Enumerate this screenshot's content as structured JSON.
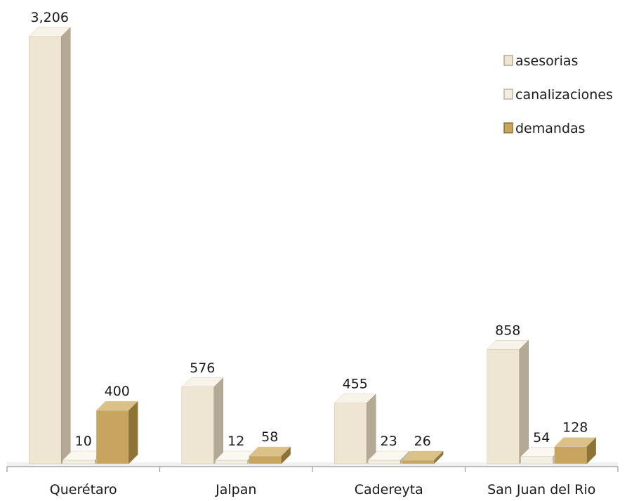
{
  "chart_data": {
    "type": "bar",
    "categories": [
      "Querétaro",
      "Jalpan",
      "Cadereyta",
      "San Juan del Rio"
    ],
    "series": [
      {
        "name": "asesorias",
        "values": [
          3206,
          576,
          455,
          858
        ],
        "labels": [
          "3,206",
          "576",
          "455",
          "858"
        ]
      },
      {
        "name": "canalizaciones",
        "values": [
          10,
          12,
          23,
          54
        ],
        "labels": [
          "10",
          "12",
          "23",
          "54"
        ]
      },
      {
        "name": "demandas",
        "values": [
          400,
          58,
          26,
          128
        ],
        "labels": [
          "400",
          "58",
          "26",
          "128"
        ]
      }
    ],
    "ylim": [
      0,
      3206
    ],
    "grid": false,
    "legend_position": "top-right",
    "colors": {
      "asesorias": {
        "front": "#EEE5D3",
        "top": "#F8F3E8",
        "side": "#B3A995"
      },
      "canalizaciones": {
        "front": "#F3EEE2",
        "top": "#FBF8F1",
        "side": "#BDB5A6"
      },
      "demandas": {
        "front": "#C8A55E",
        "top": "#DCC187",
        "side": "#8F7334"
      }
    }
  }
}
